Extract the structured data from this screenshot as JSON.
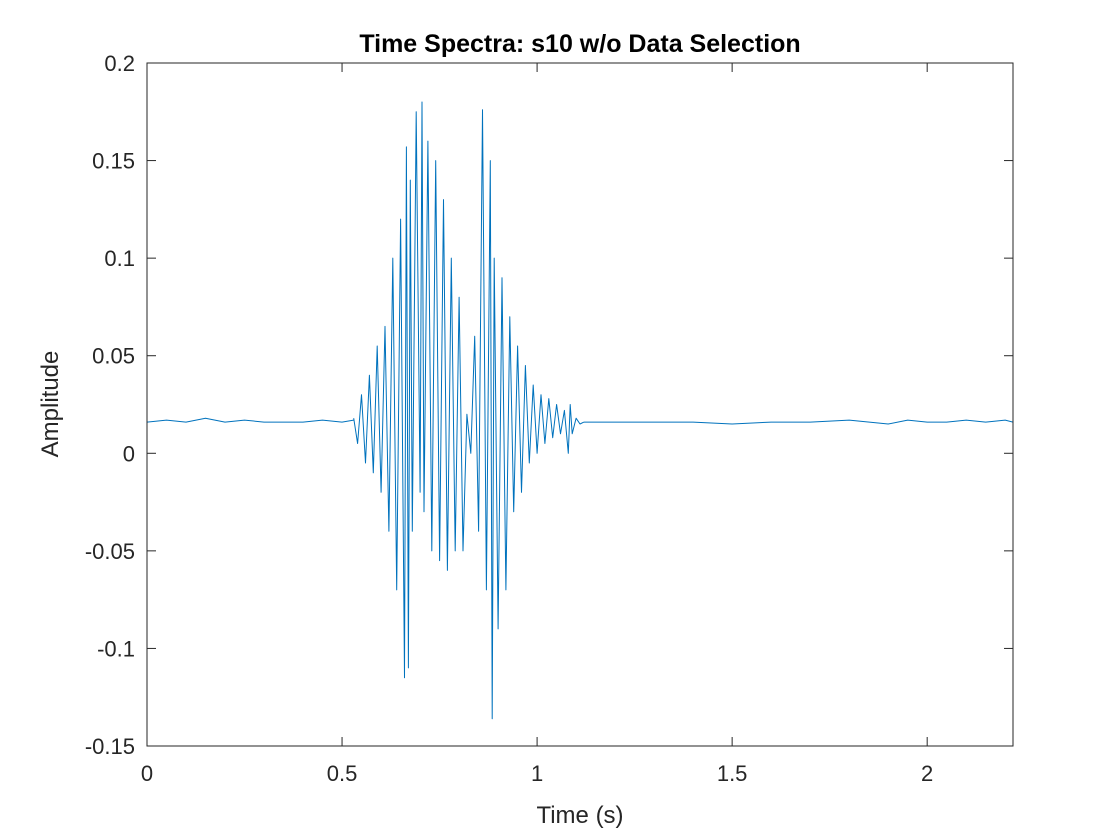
{
  "chart_data": {
    "type": "line",
    "title": "Time Spectra: s10 w/o Data Selection",
    "xlabel": "Time (s)",
    "ylabel": "Amplitude",
    "xlim": [
      0,
      2.22
    ],
    "ylim": [
      -0.15,
      0.2
    ],
    "xticks": [
      0,
      0.5,
      1,
      1.5,
      2
    ],
    "xtick_labels": [
      "0",
      "0.5",
      "1",
      "1.5",
      "2"
    ],
    "yticks": [
      -0.15,
      -0.1,
      -0.05,
      0,
      0.05,
      0.1,
      0.15,
      0.2
    ],
    "ytick_labels": [
      "-0.15",
      "-0.1",
      "-0.05",
      "0",
      "0.05",
      "0.1",
      "0.15",
      "0.2"
    ],
    "grid": false,
    "color": "#0072BD",
    "series": [
      {
        "x": [
          0,
          0.05,
          0.1,
          0.15,
          0.2,
          0.25,
          0.3,
          0.35,
          0.4,
          0.45,
          0.5,
          0.53
        ],
        "y": [
          0.016,
          0.017,
          0.016,
          0.018,
          0.016,
          0.017,
          0.016,
          0.016,
          0.016,
          0.017,
          0.016,
          0.017
        ]
      },
      {
        "x": [
          0.53,
          0.54,
          0.55,
          0.56,
          0.57,
          0.58,
          0.59,
          0.6,
          0.61,
          0.62,
          0.63,
          0.64,
          0.65,
          0.66,
          0.665,
          0.67,
          0.675,
          0.68,
          0.69,
          0.7,
          0.705,
          0.71,
          0.72,
          0.73,
          0.74,
          0.75,
          0.76,
          0.77,
          0.78,
          0.79,
          0.8,
          0.81,
          0.82,
          0.83,
          0.84,
          0.85,
          0.86,
          0.87,
          0.88,
          0.885,
          0.89,
          0.9,
          0.91,
          0.92,
          0.93,
          0.94,
          0.95,
          0.96,
          0.97,
          0.98,
          0.99,
          1.0,
          1.01,
          1.02,
          1.03,
          1.04,
          1.05,
          1.06,
          1.07,
          1.08,
          1.085,
          1.09,
          1.1,
          1.11,
          1.12
        ],
        "y": [
          0.018,
          0.005,
          0.03,
          -0.005,
          0.04,
          -0.01,
          0.055,
          -0.02,
          0.065,
          -0.04,
          0.1,
          -0.07,
          0.12,
          -0.115,
          0.157,
          -0.11,
          0.14,
          -0.04,
          0.175,
          -0.02,
          0.18,
          -0.03,
          0.16,
          -0.05,
          0.15,
          -0.055,
          0.13,
          -0.06,
          0.1,
          -0.05,
          0.08,
          -0.05,
          0.02,
          0.0,
          0.06,
          -0.04,
          0.176,
          -0.07,
          0.15,
          -0.136,
          0.1,
          -0.09,
          0.09,
          -0.07,
          0.07,
          -0.03,
          0.055,
          -0.02,
          0.045,
          -0.005,
          0.035,
          0.0,
          0.03,
          0.005,
          0.028,
          0.008,
          0.025,
          0.01,
          0.022,
          0.0,
          0.025,
          0.01,
          0.018,
          0.015,
          0.016
        ]
      },
      {
        "x": [
          1.12,
          1.2,
          1.3,
          1.4,
          1.5,
          1.6,
          1.7,
          1.8,
          1.9,
          1.95,
          2.0,
          2.05,
          2.1,
          2.15,
          2.2,
          2.22
        ],
        "y": [
          0.016,
          0.016,
          0.016,
          0.016,
          0.015,
          0.016,
          0.016,
          0.017,
          0.015,
          0.017,
          0.016,
          0.016,
          0.017,
          0.016,
          0.017,
          0.016
        ]
      }
    ]
  }
}
